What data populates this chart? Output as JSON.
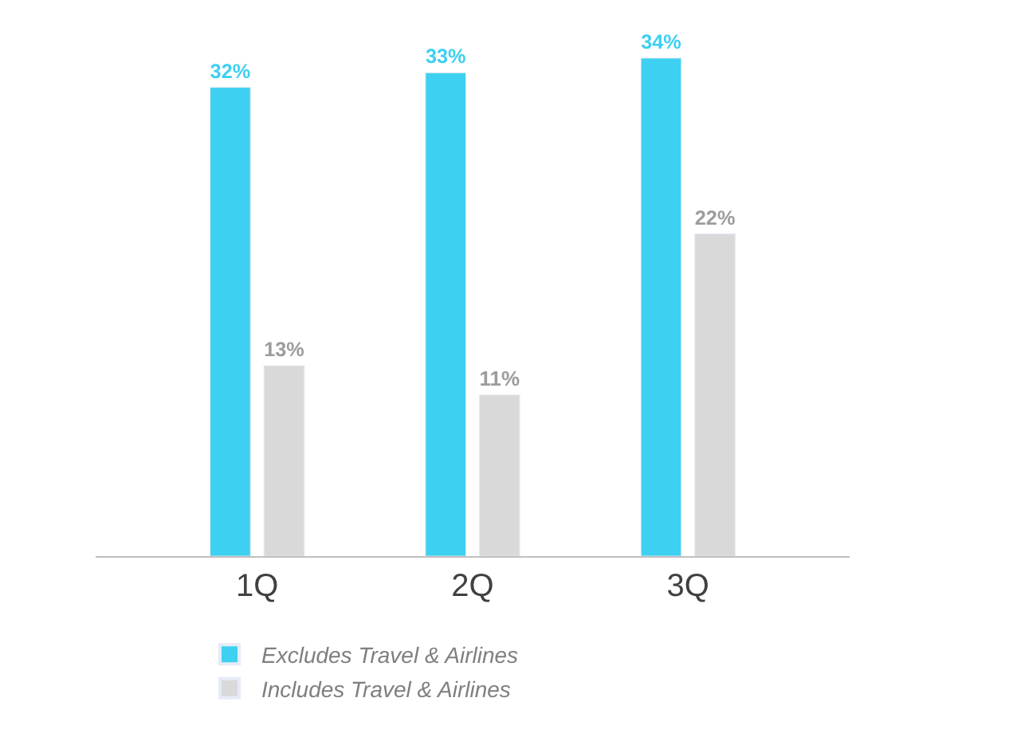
{
  "chart_data": {
    "type": "bar",
    "categories": [
      "1Q",
      "2Q",
      "3Q"
    ],
    "series": [
      {
        "name": "Excludes Travel & Airlines",
        "color": "#3dd0f0",
        "values": [
          32,
          33,
          34
        ],
        "value_labels": [
          "32%",
          "33%",
          "34%"
        ]
      },
      {
        "name": "Includes Travel & Airlines",
        "color": "#d9d9d9",
        "values": [
          13,
          11,
          22
        ],
        "value_labels": [
          "13%",
          "11%",
          "22%"
        ]
      }
    ],
    "legend": "bottom",
    "tick_labels": "x"
  }
}
